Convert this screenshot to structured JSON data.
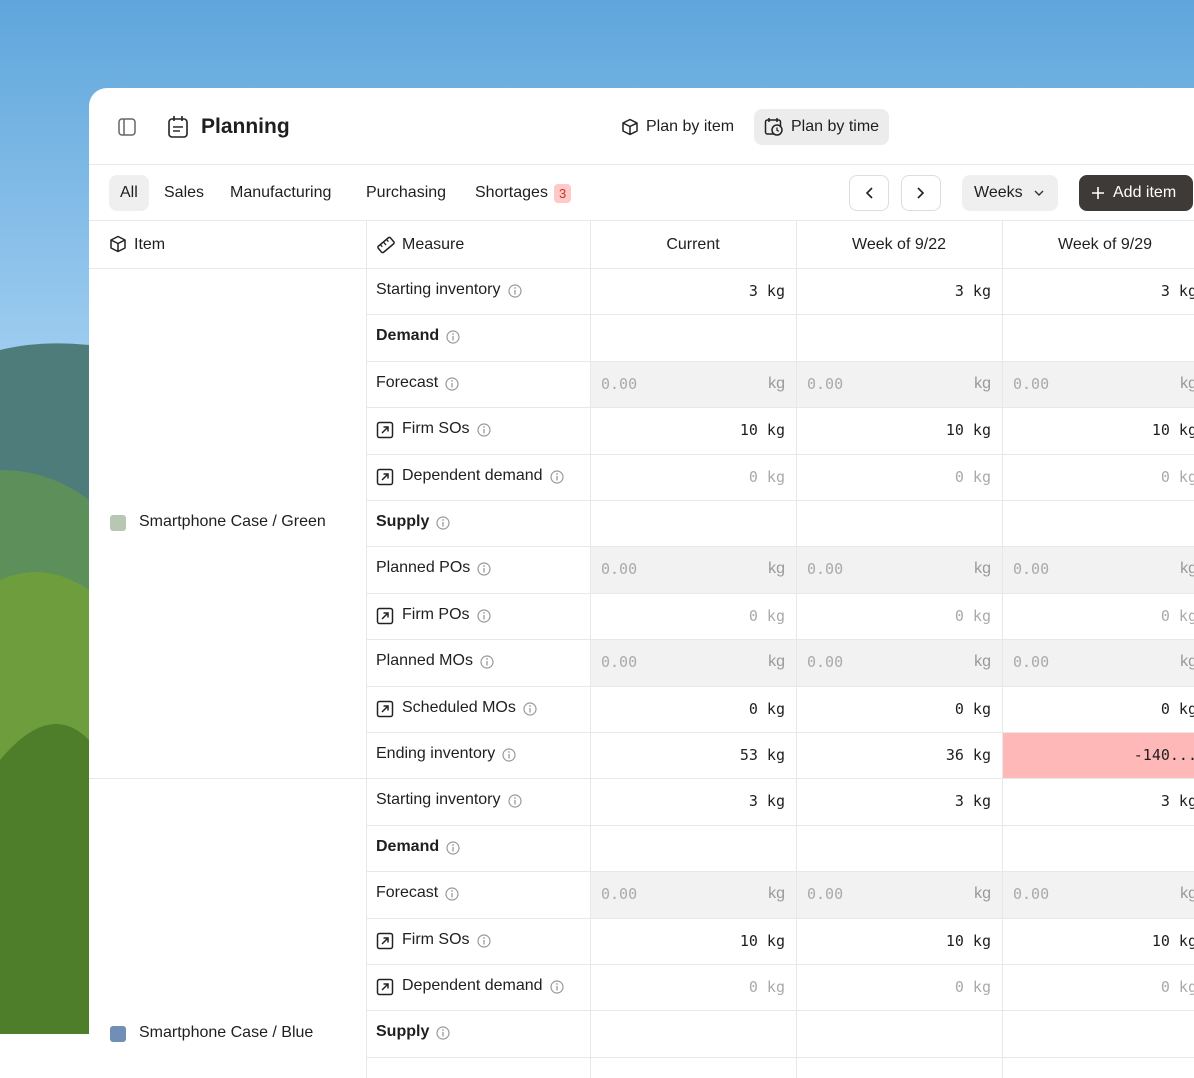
{
  "header": {
    "title": "Planning",
    "views": [
      "Plan by item",
      "Plan by time"
    ],
    "active_view": 1
  },
  "filters": {
    "tabs": [
      "All",
      "Sales",
      "Manufacturing",
      "Purchasing",
      "Shortages"
    ],
    "active_tab": 0,
    "shortage_count": "3",
    "period": "Weeks",
    "add_button": "Add item"
  },
  "table": {
    "columns": [
      "Item",
      "Measure",
      "Current",
      "Week of 9/22",
      "Week of 9/29"
    ],
    "groups": [
      {
        "item": "Smartphone Case / Green",
        "swatch": "#b7c7b2",
        "rows": [
          {
            "measure": "Starting inventory",
            "kind": "value",
            "cells": [
              "3 kg",
              "3 kg",
              "3 kg"
            ]
          },
          {
            "measure": "Demand",
            "kind": "section",
            "cells": []
          },
          {
            "measure": "Forecast",
            "kind": "input",
            "cells": [
              {
                "text": "0.00",
                "unit": "kg"
              },
              {
                "text": "0.00",
                "unit": "kg"
              },
              {
                "text": "0.00",
                "unit": "kg"
              }
            ]
          },
          {
            "measure": "Firm SOs",
            "kind": "value",
            "linked": true,
            "cells": [
              "10 kg",
              "10 kg",
              "10 kg"
            ]
          },
          {
            "measure": "Dependent demand",
            "kind": "muted",
            "linked": true,
            "cells": [
              "0 kg",
              "0 kg",
              "0 kg"
            ]
          },
          {
            "measure": "Supply",
            "kind": "section",
            "cells": []
          },
          {
            "measure": "Planned POs",
            "kind": "input",
            "cells": [
              {
                "text": "0.00",
                "unit": "kg"
              },
              {
                "text": "0.00",
                "unit": "kg"
              },
              {
                "text": "0.00",
                "unit": "kg"
              }
            ]
          },
          {
            "measure": "Firm POs",
            "kind": "muted",
            "linked": true,
            "cells": [
              "0 kg",
              "0 kg",
              "0 kg"
            ]
          },
          {
            "measure": "Planned MOs",
            "kind": "input",
            "cells": [
              {
                "text": "0.00",
                "unit": "kg"
              },
              {
                "text": "0.00",
                "unit": "kg"
              },
              {
                "text": "0.00",
                "unit": "kg"
              }
            ]
          },
          {
            "measure": "Scheduled MOs",
            "kind": "value",
            "linked": true,
            "cells": [
              "0 kg",
              "0 kg",
              "0 kg"
            ]
          },
          {
            "measure": "Ending inventory",
            "kind": "value",
            "alert_cells": [
              2
            ],
            "cells": [
              "53 kg",
              "36 kg",
              "-140..."
            ]
          }
        ]
      },
      {
        "item": "Smartphone Case / Blue",
        "swatch": "#6f8fb8",
        "rows": [
          {
            "measure": "Starting inventory",
            "kind": "value",
            "cells": [
              "3 kg",
              "3 kg",
              "3 kg"
            ]
          },
          {
            "measure": "Demand",
            "kind": "section",
            "cells": []
          },
          {
            "measure": "Forecast",
            "kind": "input",
            "cells": [
              {
                "text": "0.00",
                "unit": "kg"
              },
              {
                "text": "0.00",
                "unit": "kg"
              },
              {
                "text": "0.00",
                "unit": "kg"
              }
            ]
          },
          {
            "measure": "Firm SOs",
            "kind": "value",
            "linked": true,
            "cells": [
              "10 kg",
              "10 kg",
              "10 kg"
            ]
          },
          {
            "measure": "Dependent demand",
            "kind": "muted",
            "linked": true,
            "cells": [
              "0 kg",
              "0 kg",
              "0 kg"
            ]
          },
          {
            "measure": "Supply",
            "kind": "section",
            "cells": []
          }
        ]
      }
    ]
  }
}
